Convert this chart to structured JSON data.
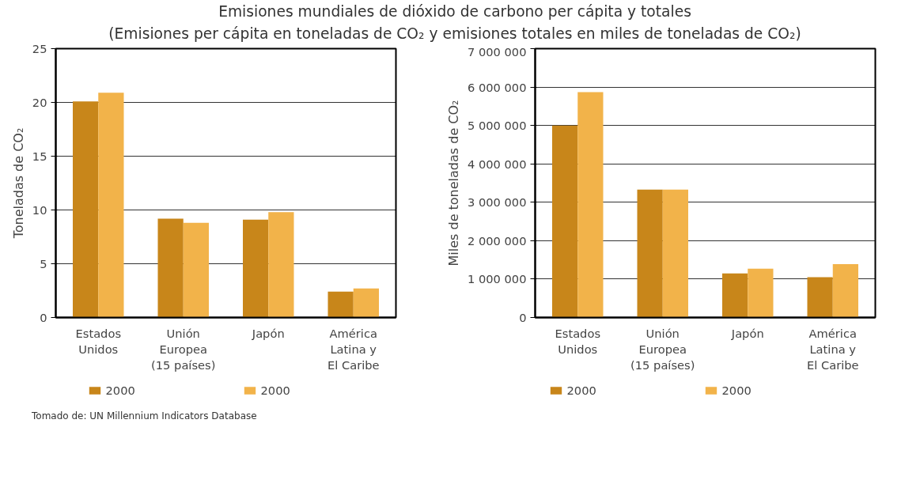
{
  "chart_data": [
    {
      "type": "bar",
      "title": "Emisiones mundiales de dióxido de carbono per cápita y totales",
      "subtitle": "(Emisiones per cápita en toneladas de CO₂ y emisiones totales en miles de toneladas de CO₂)",
      "ylabel": "Toneladas de CO₂",
      "categories": [
        "Estados\nUnidos",
        "Unión\nEuropea\n(15 países)",
        "Japón",
        "América\nLatina y\nEl Caribe"
      ],
      "series": [
        {
          "name": "2000",
          "color": "#c8861a",
          "values": [
            20.1,
            9.2,
            9.1,
            2.4
          ]
        },
        {
          "name": "2000",
          "color": "#f2b34a",
          "values": [
            20.9,
            8.8,
            9.8,
            2.7
          ]
        }
      ],
      "ylim": [
        0,
        25
      ],
      "yticks": [
        0,
        5,
        10,
        15,
        20,
        25
      ],
      "grid": "y",
      "legend": "bottom",
      "annotations": [
        "Tomado de: UN Millennium Indicators Database"
      ]
    },
    {
      "type": "bar",
      "ylabel": "Miles de toneladas de CO₂",
      "categories": [
        "Estados\nUnidos",
        "Unión\nEuropea\n(15 países)",
        "Japón",
        "América\nLatina y\nEl Caribe"
      ],
      "series": [
        {
          "name": "2000",
          "color": "#c8861a",
          "values": [
            5000000,
            3330000,
            1150000,
            1050000
          ]
        },
        {
          "name": "2000",
          "color": "#f2b34a",
          "values": [
            5870000,
            3330000,
            1270000,
            1390000
          ]
        }
      ],
      "ylim": [
        0,
        7000000
      ],
      "yticks": [
        0,
        {
          "value": 1000000,
          "label": "1 000 000"
        },
        {
          "value": 2000000,
          "label": "2 000 000"
        },
        {
          "value": 3000000,
          "label": "3 000 000"
        },
        {
          "value": 4000000,
          "label": "4 000 000"
        },
        {
          "value": 5000000,
          "label": "5 000 000"
        },
        {
          "value": 6000000,
          "label": "6 000 000"
        },
        {
          "value": 7000000,
          "label": "7 000 000"
        }
      ],
      "grid": "y",
      "legend": "bottom"
    }
  ]
}
